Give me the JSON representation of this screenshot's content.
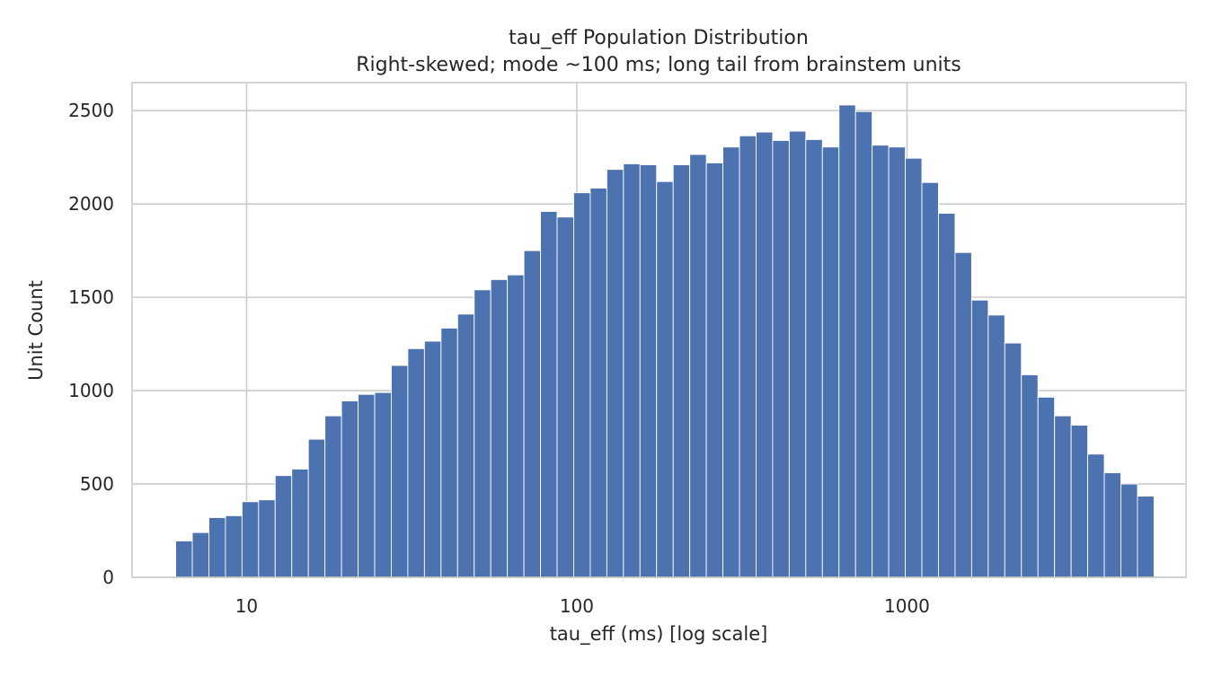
{
  "chart_data": {
    "type": "bar",
    "title": "tau_eff Population Distribution",
    "subtitle": "Right-skewed; mode ~100 ms; long tail from brainstem units",
    "xlabel": "tau_eff (ms) [log scale]",
    "ylabel": "Unit Count",
    "x_scale": "log",
    "xlim": [
      4.5,
      7000
    ],
    "ylim": [
      0,
      2650
    ],
    "x_ticks": [
      10,
      100,
      1000
    ],
    "x_tick_labels": [
      "10",
      "100",
      "1000"
    ],
    "y_ticks": [
      0,
      500,
      1000,
      1500,
      2000,
      2500
    ],
    "y_tick_labels": [
      "0",
      "500",
      "1000",
      "1500",
      "2000",
      "2500"
    ],
    "grid": true,
    "bar_color": "#4c72b0",
    "bin_range": [
      6.1,
      5600
    ],
    "values": [
      195,
      240,
      320,
      330,
      405,
      415,
      545,
      580,
      740,
      865,
      945,
      980,
      990,
      1135,
      1225,
      1265,
      1335,
      1410,
      1540,
      1595,
      1620,
      1750,
      1960,
      1930,
      2060,
      2085,
      2185,
      2215,
      2210,
      2120,
      2210,
      2265,
      2220,
      2305,
      2365,
      2385,
      2340,
      2390,
      2345,
      2305,
      2530,
      2495,
      2315,
      2305,
      2245,
      2115,
      1950,
      1740,
      1485,
      1405,
      1255,
      1085,
      965,
      865,
      815,
      660,
      560,
      500,
      435
    ]
  }
}
